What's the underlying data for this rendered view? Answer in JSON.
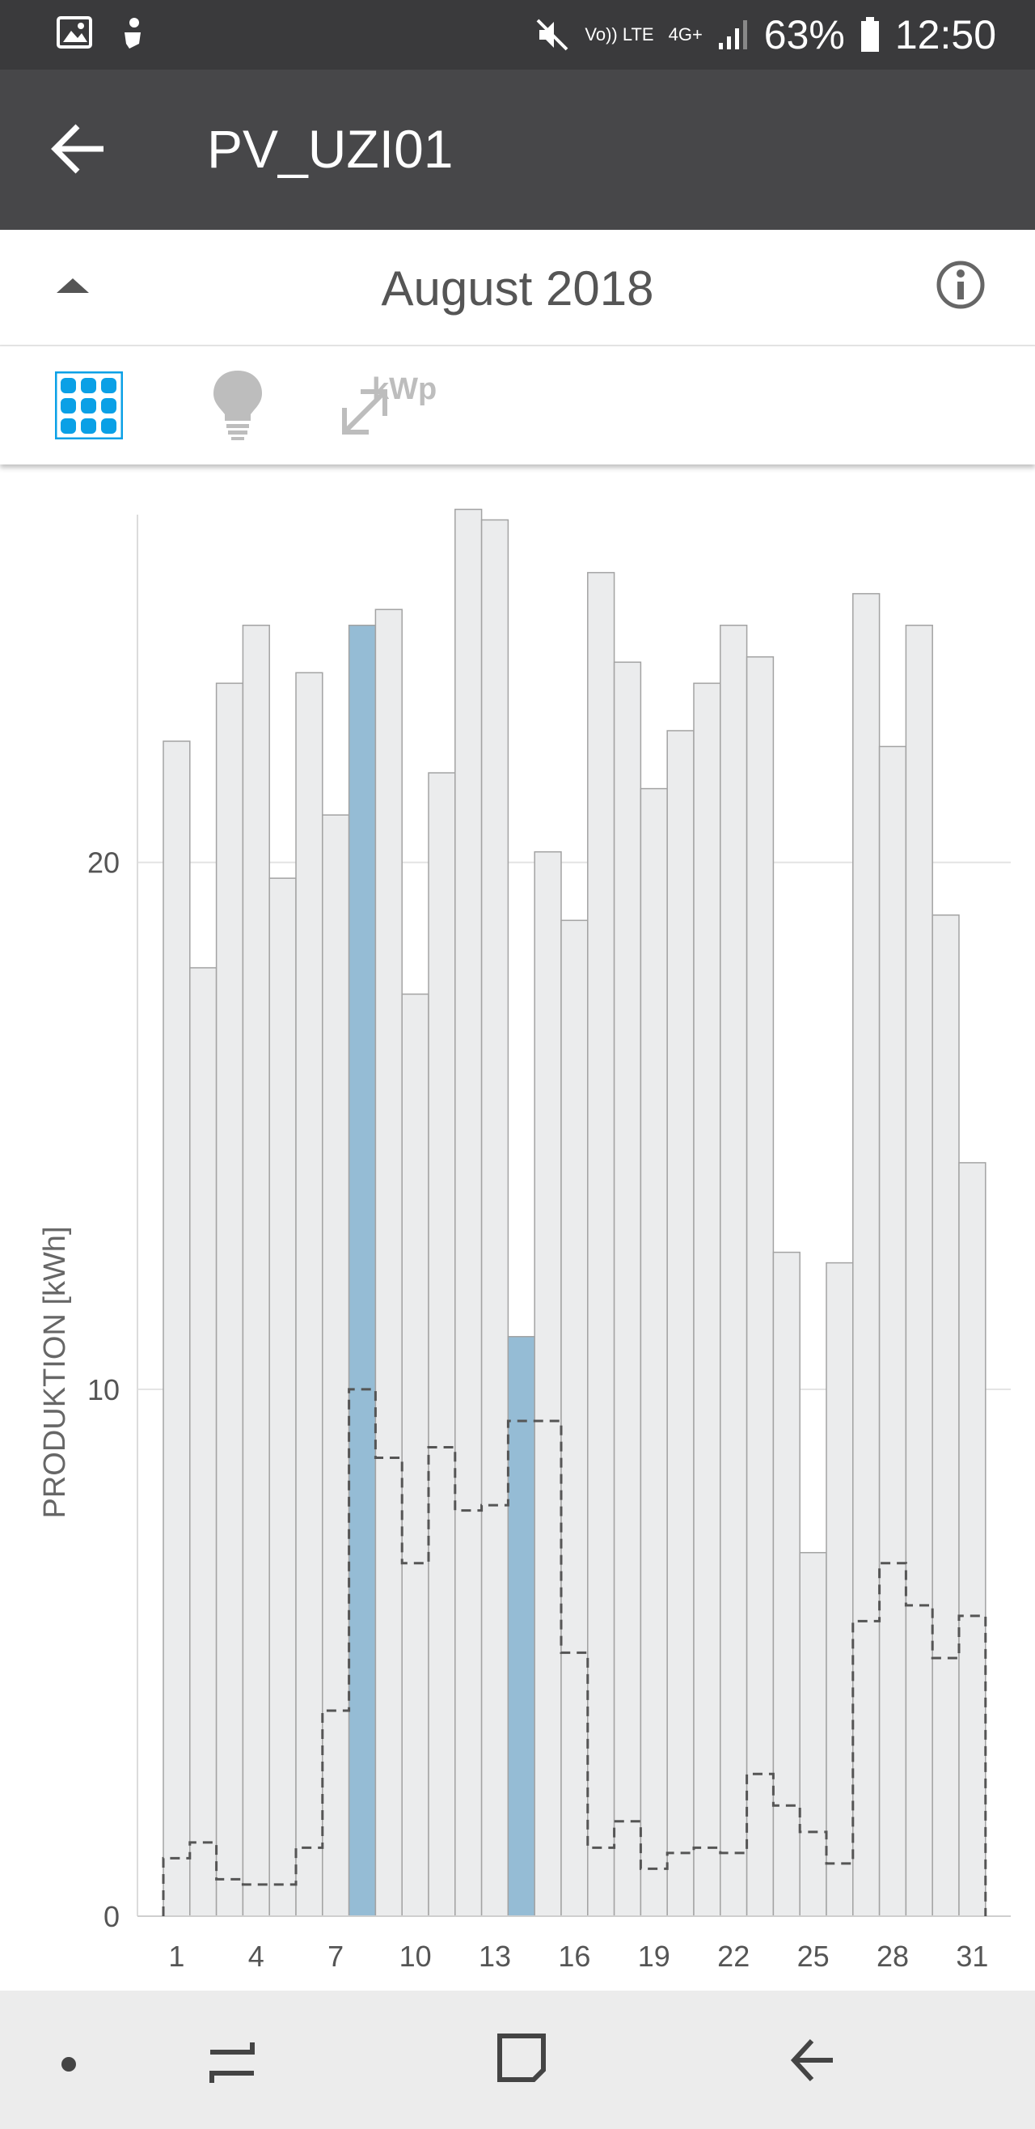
{
  "status_bar": {
    "left_icons": [
      "image-icon",
      "android-debug-icon"
    ],
    "mute_icon": "mute-icon",
    "volte_label": "Vo)) LTE",
    "network_label": "4G+",
    "battery": "63%",
    "time": "12:50"
  },
  "app_bar": {
    "title": "PV_UZI01",
    "back_icon": "back-arrow-icon"
  },
  "month_bar": {
    "collapse_icon": "triangle-up-icon",
    "month": "August 2018",
    "info_icon": "info-icon"
  },
  "toolbar": {
    "tools": [
      {
        "name": "solar-panel-icon",
        "active": true
      },
      {
        "name": "lightbulb-icon",
        "active": false
      },
      {
        "name": "kwp-scale-icon",
        "label": "kWp",
        "active": false
      }
    ]
  },
  "colors": {
    "bar_normal": "#ebeced",
    "bar_highlight": "#95bcd5",
    "bar_border": "#a3a3a3",
    "accent": "#0aa0e6"
  },
  "chart_data": {
    "type": "bar",
    "ylabel": "PRODUKTION [kWh]",
    "ylim": [
      0,
      26.6
    ],
    "yticks": [
      0,
      10,
      20
    ],
    "xtick_labels": [
      "1",
      "4",
      "7",
      "10",
      "13",
      "16",
      "19",
      "22",
      "25",
      "28",
      "31"
    ],
    "categories": [
      1,
      2,
      3,
      4,
      5,
      6,
      7,
      8,
      9,
      10,
      11,
      12,
      13,
      14,
      15,
      16,
      17,
      18,
      19,
      20,
      21,
      22,
      23,
      24,
      25,
      26,
      27,
      28,
      29,
      30,
      31
    ],
    "series": [
      {
        "values": [
          22.3,
          18.0,
          23.4,
          24.5,
          19.7,
          23.6,
          20.9,
          24.5,
          24.8,
          17.5,
          21.7,
          26.7,
          26.5,
          11.0,
          20.2,
          18.9,
          25.5,
          23.8,
          21.4,
          22.5,
          23.4,
          24.5,
          23.9,
          12.6,
          6.9,
          12.4,
          25.1,
          22.2,
          24.5,
          19.0,
          14.3
        ],
        "highlighted_days": [
          8,
          14
        ]
      },
      {
        "style": "dashed-step",
        "values": [
          1.1,
          1.4,
          0.7,
          0.6,
          0.6,
          1.3,
          3.9,
          10.0,
          8.7,
          6.7,
          8.9,
          7.7,
          7.8,
          9.4,
          9.4,
          5.0,
          1.3,
          1.8,
          0.9,
          1.2,
          1.3,
          1.2,
          2.7,
          2.1,
          1.6,
          1.0,
          5.6,
          6.7,
          5.9,
          4.9,
          5.7
        ]
      }
    ],
    "grid": true
  },
  "nav_bar": {
    "items": [
      "dot-icon",
      "recent-apps-icon",
      "home-icon",
      "back-nav-icon"
    ]
  }
}
